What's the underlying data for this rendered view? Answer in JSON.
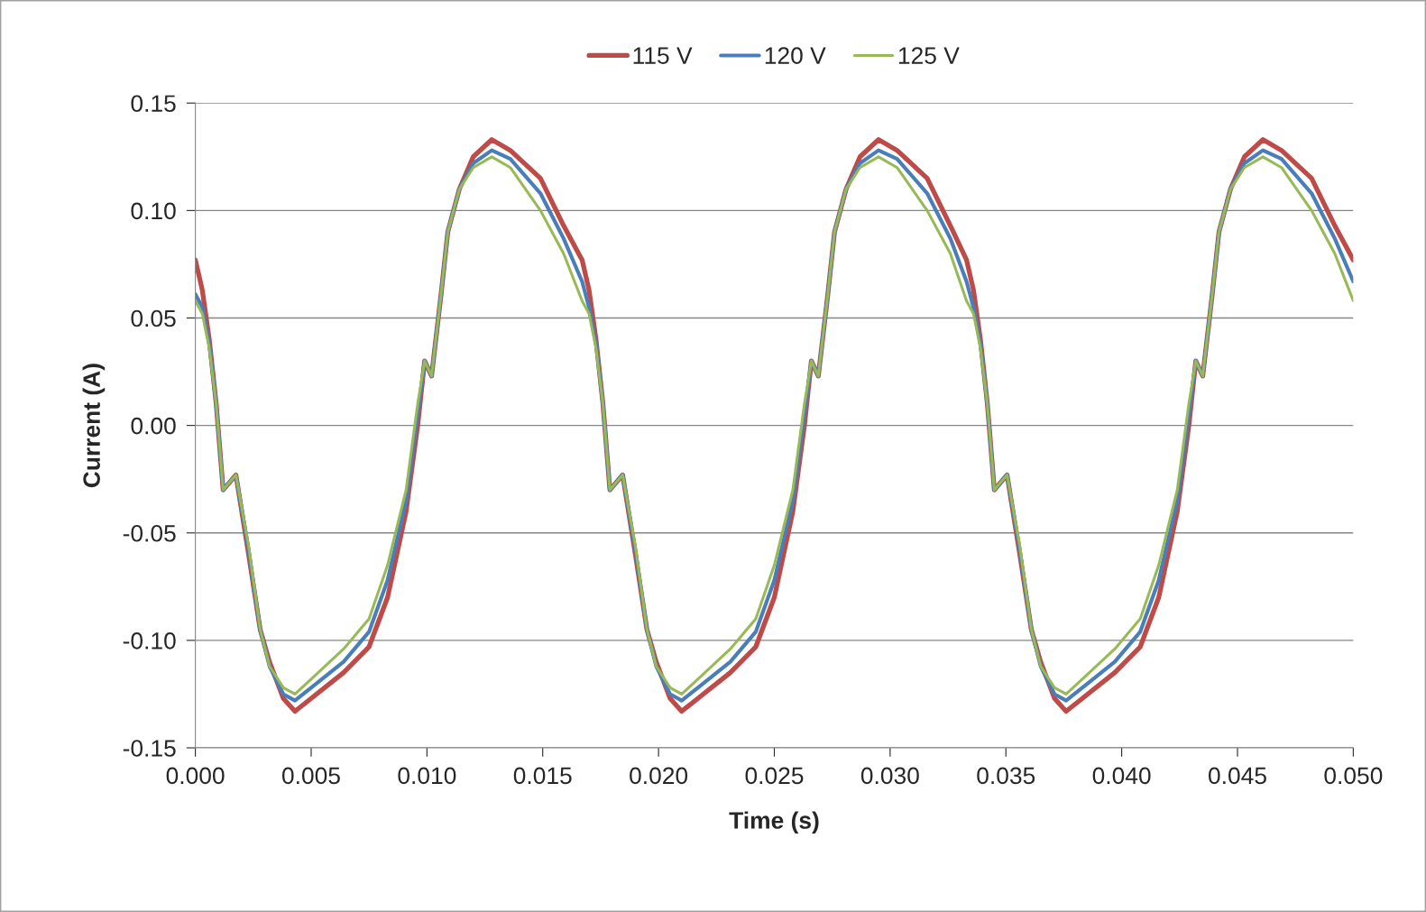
{
  "chart_data": {
    "type": "line",
    "xlabel": "Time (s)",
    "ylabel": "Current (A)",
    "x": [
      0,
      0.0003,
      0.0006,
      0.0009,
      0.0012,
      0.00175,
      0.0023,
      0.0028,
      0.0032,
      0.0038,
      0.0043,
      0.005,
      0.0064,
      0.0075,
      0.0083,
      0.0091,
      0.0096,
      0.0099,
      0.0102,
      0.0106,
      0.0109,
      0.0114,
      0.012,
      0.0128,
      0.0136,
      0.0149,
      0.0159,
      0.0167,
      0.017,
      0.0173,
      0.0176,
      0.0179,
      0.01845,
      0.019,
      0.0195,
      0.0199,
      0.0205,
      0.021,
      0.0217,
      0.0231,
      0.0242,
      0.025,
      0.0258,
      0.0263,
      0.0266,
      0.0269,
      0.0273,
      0.0276,
      0.0281,
      0.0287,
      0.0295,
      0.0303,
      0.0316,
      0.0326,
      0.0333,
      0.0336,
      0.0339,
      0.0342,
      0.0345,
      0.03505,
      0.0356,
      0.0361,
      0.0365,
      0.0371,
      0.0376,
      0.0383,
      0.0397,
      0.0408,
      0.0416,
      0.0424,
      0.0429,
      0.0432,
      0.0435,
      0.0439,
      0.0442,
      0.0447,
      0.0453,
      0.0461,
      0.0469,
      0.0482,
      0.0492,
      0.05
    ],
    "series": [
      {
        "name": "115 V",
        "color": "#be4b48",
        "values": [
          0.077,
          0.063,
          0.04,
          0.01,
          -0.03,
          -0.023,
          -0.06,
          -0.095,
          -0.11,
          -0.127,
          -0.133,
          -0.127,
          -0.115,
          -0.103,
          -0.08,
          -0.04,
          0.0,
          0.03,
          0.023,
          0.06,
          0.09,
          0.11,
          0.125,
          0.133,
          0.128,
          0.115,
          0.093,
          0.077,
          0.063,
          0.04,
          0.01,
          -0.03,
          -0.023,
          -0.06,
          -0.095,
          -0.11,
          -0.127,
          -0.133,
          -0.127,
          -0.115,
          -0.103,
          -0.08,
          -0.04,
          0.0,
          0.03,
          0.023,
          0.06,
          0.09,
          0.11,
          0.125,
          0.133,
          0.128,
          0.115,
          0.093,
          0.077,
          0.063,
          0.04,
          0.01,
          -0.03,
          -0.023,
          -0.06,
          -0.095,
          -0.11,
          -0.127,
          -0.133,
          -0.127,
          -0.115,
          -0.103,
          -0.08,
          -0.04,
          0.0,
          0.03,
          0.023,
          0.06,
          0.09,
          0.11,
          0.125,
          0.133,
          0.128,
          0.115,
          0.093,
          0.077
        ]
      },
      {
        "name": "120 V",
        "color": "#4a7ebb",
        "values": [
          0.061,
          0.055,
          0.038,
          0.01,
          -0.03,
          -0.023,
          -0.058,
          -0.095,
          -0.112,
          -0.125,
          -0.128,
          -0.122,
          -0.11,
          -0.096,
          -0.072,
          -0.035,
          0.005,
          0.03,
          0.023,
          0.06,
          0.09,
          0.11,
          0.122,
          0.128,
          0.124,
          0.108,
          0.087,
          0.067,
          0.055,
          0.038,
          0.01,
          -0.03,
          -0.023,
          -0.058,
          -0.095,
          -0.112,
          -0.125,
          -0.128,
          -0.122,
          -0.11,
          -0.096,
          -0.072,
          -0.035,
          0.005,
          0.03,
          0.023,
          0.06,
          0.09,
          0.11,
          0.122,
          0.128,
          0.124,
          0.108,
          0.087,
          0.067,
          0.055,
          0.038,
          0.01,
          -0.03,
          -0.023,
          -0.058,
          -0.095,
          -0.112,
          -0.125,
          -0.128,
          -0.122,
          -0.11,
          -0.096,
          -0.072,
          -0.035,
          0.005,
          0.03,
          0.023,
          0.06,
          0.09,
          0.11,
          0.122,
          0.128,
          0.124,
          0.108,
          0.087,
          0.067
        ]
      },
      {
        "name": "125 V",
        "color": "#98b954",
        "values": [
          0.058,
          0.052,
          0.036,
          0.01,
          -0.03,
          -0.023,
          -0.056,
          -0.095,
          -0.112,
          -0.122,
          -0.125,
          -0.118,
          -0.104,
          -0.09,
          -0.065,
          -0.03,
          0.01,
          0.03,
          0.023,
          0.06,
          0.09,
          0.11,
          0.12,
          0.125,
          0.12,
          0.1,
          0.08,
          0.058,
          0.052,
          0.036,
          0.01,
          -0.03,
          -0.023,
          -0.056,
          -0.095,
          -0.112,
          -0.122,
          -0.125,
          -0.118,
          -0.104,
          -0.09,
          -0.065,
          -0.03,
          0.01,
          0.03,
          0.023,
          0.06,
          0.09,
          0.11,
          0.12,
          0.125,
          0.12,
          0.1,
          0.08,
          0.058,
          0.052,
          0.036,
          0.01,
          -0.03,
          -0.023,
          -0.056,
          -0.095,
          -0.112,
          -0.122,
          -0.125,
          -0.118,
          -0.104,
          -0.09,
          -0.065,
          -0.03,
          0.01,
          0.03,
          0.023,
          0.06,
          0.09,
          0.11,
          0.12,
          0.125,
          0.12,
          0.1,
          0.08,
          0.058
        ]
      }
    ],
    "xlim": [
      0,
      0.05
    ],
    "xticks": [
      {
        "value": 0,
        "label": "0.000"
      },
      {
        "value": 0.005,
        "label": "0.005"
      },
      {
        "value": 0.01,
        "label": "0.010"
      },
      {
        "value": 0.015,
        "label": "0.015"
      },
      {
        "value": 0.02,
        "label": "0.020"
      },
      {
        "value": 0.025,
        "label": "0.025"
      },
      {
        "value": 0.03,
        "label": "0.030"
      },
      {
        "value": 0.035,
        "label": "0.035"
      },
      {
        "value": 0.04,
        "label": "0.040"
      },
      {
        "value": 0.045,
        "label": "0.045"
      },
      {
        "value": 0.05,
        "label": "0.050"
      }
    ],
    "ylim": [
      -0.15,
      0.15
    ],
    "yticks": [
      {
        "value": -0.15,
        "label": "-0.15"
      },
      {
        "value": -0.1,
        "label": "-0.10"
      },
      {
        "value": -0.05,
        "label": "-0.05"
      },
      {
        "value": 0,
        "label": "0.00"
      },
      {
        "value": 0.05,
        "label": "0.05"
      },
      {
        "value": 0.1,
        "label": "0.10"
      },
      {
        "value": 0.15,
        "label": "0.15"
      }
    ],
    "grid": "y",
    "legend": "top",
    "marker": "none",
    "line_style": "solid"
  }
}
